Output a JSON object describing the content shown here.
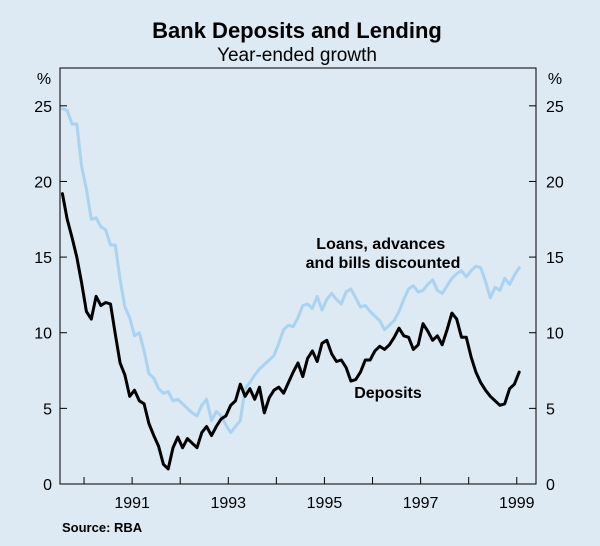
{
  "chart_data": {
    "type": "line",
    "title": "Bank Deposits and Lending",
    "subtitle": "Year-ended growth",
    "y_unit_left": "%",
    "y_unit_right": "%",
    "ylim": [
      0,
      27.5
    ],
    "y_ticks": [
      0,
      5,
      10,
      15,
      20,
      25
    ],
    "xlim": [
      1989.5,
      1999.4
    ],
    "x_ticks": [
      "1991",
      "1993",
      "1995",
      "1997",
      "1999"
    ],
    "x_tick_values": [
      1991.0,
      1993.0,
      1995.0,
      1997.0,
      1999.0
    ],
    "source": "Source: RBA",
    "grid": false,
    "series": [
      {
        "name": "Loans, advances and bills discounted",
        "label_lines": [
          "Loans, advances",
          "and bills discounted"
        ],
        "color": "#a9d3f1",
        "x": [
          1989.55,
          1989.65,
          1989.75,
          1989.85,
          1989.95,
          1990.05,
          1990.15,
          1990.25,
          1990.35,
          1990.45,
          1990.55,
          1990.65,
          1990.75,
          1990.85,
          1990.95,
          1991.05,
          1991.15,
          1991.25,
          1991.35,
          1991.45,
          1991.55,
          1991.65,
          1991.75,
          1991.85,
          1991.95,
          1992.05,
          1992.15,
          1992.25,
          1992.35,
          1992.45,
          1992.55,
          1992.65,
          1992.75,
          1992.85,
          1992.95,
          1993.05,
          1993.15,
          1993.25,
          1993.35,
          1993.45,
          1993.55,
          1993.65,
          1993.75,
          1993.85,
          1993.95,
          1994.05,
          1994.15,
          1994.25,
          1994.35,
          1994.45,
          1994.55,
          1994.65,
          1994.75,
          1994.85,
          1994.95,
          1995.05,
          1995.15,
          1995.25,
          1995.35,
          1995.45,
          1995.55,
          1995.65,
          1995.75,
          1995.85,
          1995.95,
          1996.05,
          1996.15,
          1996.25,
          1996.35,
          1996.45,
          1996.55,
          1996.65,
          1996.75,
          1996.85,
          1996.95,
          1997.05,
          1997.15,
          1997.25,
          1997.35,
          1997.45,
          1997.55,
          1997.65,
          1997.75,
          1997.85,
          1997.95,
          1998.05,
          1998.15,
          1998.25,
          1998.35,
          1998.45,
          1998.55,
          1998.65,
          1998.75,
          1998.85,
          1998.95,
          1999.05
        ],
        "values": [
          24.8,
          24.7,
          23.8,
          23.8,
          21.0,
          19.5,
          17.5,
          17.6,
          17.0,
          16.8,
          15.8,
          15.8,
          13.5,
          11.7,
          11.0,
          9.8,
          10.0,
          8.8,
          7.3,
          7.0,
          6.3,
          6.0,
          6.1,
          5.5,
          5.6,
          5.3,
          5.0,
          4.7,
          4.5,
          5.2,
          5.6,
          4.2,
          4.8,
          4.5,
          3.9,
          3.4,
          3.8,
          4.2,
          6.3,
          6.7,
          7.2,
          7.6,
          7.9,
          8.2,
          8.5,
          9.3,
          10.2,
          10.5,
          10.4,
          11.0,
          11.8,
          11.9,
          11.6,
          12.4,
          11.5,
          12.2,
          12.6,
          12.2,
          11.9,
          12.7,
          12.9,
          12.3,
          11.7,
          11.8,
          11.4,
          11.1,
          10.8,
          10.2,
          10.5,
          10.8,
          11.4,
          12.2,
          12.9,
          13.1,
          12.7,
          12.8,
          13.2,
          13.5,
          12.8,
          12.6,
          13.1,
          13.6,
          13.9,
          14.1,
          13.7,
          14.1,
          14.4,
          14.3,
          13.4,
          12.3,
          13.0,
          12.8,
          13.6,
          13.2,
          13.8,
          14.3
        ],
        "plot_x": [
          1989.55,
          1989.65,
          1989.75,
          1989.85,
          1989.95,
          1990.05,
          1990.15,
          1990.25,
          1990.35,
          1990.45,
          1990.55,
          1990.65,
          1990.75,
          1990.85,
          1990.95,
          1991.05,
          1991.15,
          1991.25,
          1991.35,
          1991.45,
          1991.55,
          1991.65,
          1991.75,
          1991.85,
          1991.95,
          1992.05,
          1992.15,
          1992.25,
          1992.35,
          1992.45,
          1992.55,
          1992.65,
          1992.75,
          1992.85,
          1992.95,
          1993.05,
          1993.15,
          1993.25,
          1993.35,
          1993.45,
          1993.55,
          1993.65,
          1993.75,
          1993.85,
          1993.95,
          1994.05,
          1994.15,
          1994.25,
          1994.35,
          1994.45,
          1994.55,
          1994.65,
          1994.75,
          1994.85,
          1994.95,
          1995.05,
          1995.15,
          1995.25,
          1995.35,
          1995.45,
          1995.55,
          1995.65,
          1995.75,
          1995.85,
          1995.95,
          1996.05,
          1996.15,
          1996.25,
          1996.35,
          1996.45,
          1996.55,
          1996.65,
          1996.75,
          1996.85,
          1996.95,
          1997.05,
          1997.15,
          1997.25,
          1997.35,
          1997.45,
          1997.55,
          1997.65,
          1997.75,
          1997.85,
          1997.95,
          1998.05,
          1998.15,
          1998.25,
          1998.35,
          1998.45,
          1998.55,
          1998.65,
          1998.75,
          1998.85,
          1998.95,
          1999.05
        ]
      },
      {
        "name": "Deposits",
        "label_lines": [
          "Deposits"
        ],
        "color": "#000000",
        "x": [
          1989.55,
          1989.65,
          1989.75,
          1989.85,
          1989.95,
          1990.05,
          1990.15,
          1990.25,
          1990.35,
          1990.45,
          1990.55,
          1990.65,
          1990.75,
          1990.85,
          1990.95,
          1991.05,
          1991.15,
          1991.25,
          1991.35,
          1991.45,
          1991.55,
          1991.65,
          1991.75,
          1991.85,
          1991.95,
          1992.05,
          1992.15,
          1992.25,
          1992.35,
          1992.45,
          1992.55,
          1992.65,
          1992.75,
          1992.85,
          1992.95,
          1993.05,
          1993.15,
          1993.25,
          1993.35,
          1993.45,
          1993.55,
          1993.65,
          1993.75,
          1993.85,
          1993.95,
          1994.05,
          1994.15,
          1994.25,
          1994.35,
          1994.45,
          1994.55,
          1994.65,
          1994.75,
          1994.85,
          1994.95,
          1995.05,
          1995.15,
          1995.25,
          1995.35,
          1995.45,
          1995.55,
          1995.65,
          1995.75,
          1995.85,
          1995.95,
          1996.05,
          1996.15,
          1996.25,
          1996.35,
          1996.45,
          1996.55,
          1996.65,
          1996.75,
          1996.85,
          1996.95,
          1997.05,
          1997.15,
          1997.25,
          1997.35,
          1997.45,
          1997.55,
          1997.65,
          1997.75,
          1997.85,
          1997.95,
          1998.05,
          1998.15,
          1998.25,
          1998.35,
          1998.45,
          1998.55,
          1998.65,
          1998.75,
          1998.85,
          1998.95,
          1999.05
        ],
        "values": [
          19.2,
          17.5,
          16.3,
          15.0,
          13.3,
          11.4,
          10.9,
          12.4,
          11.8,
          12.0,
          11.9,
          9.9,
          8.0,
          7.2,
          5.8,
          6.2,
          5.5,
          5.3,
          4.0,
          3.2,
          2.5,
          1.3,
          1.0,
          2.4,
          3.1,
          2.4,
          3.0,
          2.7,
          2.4,
          3.4,
          3.8,
          3.2,
          3.8,
          4.3,
          4.5,
          5.2,
          5.5,
          6.6,
          5.8,
          6.3,
          5.6,
          6.4,
          4.7,
          5.7,
          6.2,
          6.4,
          6.0,
          6.7,
          7.4,
          8.0,
          7.1,
          8.3,
          8.8,
          8.1,
          9.3,
          9.5,
          8.6,
          8.1,
          8.2,
          7.7,
          6.8,
          6.9,
          7.4,
          8.2,
          8.2,
          8.8,
          9.1,
          8.9,
          9.2,
          9.7,
          10.3,
          9.8,
          9.7,
          8.9,
          9.2,
          10.6,
          10.1,
          9.5,
          9.8,
          9.2,
          10.2,
          11.3,
          10.9,
          9.7,
          9.7,
          8.4,
          7.4,
          6.7,
          6.2,
          5.8,
          5.5,
          5.2,
          5.3,
          6.3,
          6.6,
          7.4
        ],
        "plot_x": [
          1989.55,
          1989.65,
          1989.75,
          1989.85,
          1989.95,
          1990.05,
          1990.15,
          1990.25,
          1990.35,
          1990.45,
          1990.55,
          1990.65,
          1990.75,
          1990.85,
          1990.95,
          1991.05,
          1991.15,
          1991.25,
          1991.35,
          1991.45,
          1991.55,
          1991.65,
          1991.75,
          1991.85,
          1991.95,
          1992.05,
          1992.15,
          1992.25,
          1992.35,
          1992.45,
          1992.55,
          1992.65,
          1992.75,
          1992.85,
          1992.95,
          1993.05,
          1993.15,
          1993.25,
          1993.35,
          1993.45,
          1993.55,
          1993.65,
          1993.75,
          1993.85,
          1993.95,
          1994.05,
          1994.15,
          1994.25,
          1994.35,
          1994.45,
          1994.55,
          1994.65,
          1994.75,
          1994.85,
          1994.95,
          1995.05,
          1995.15,
          1995.25,
          1995.35,
          1995.45,
          1995.55,
          1995.65,
          1995.75,
          1995.85,
          1995.95,
          1996.05,
          1996.15,
          1996.25,
          1996.35,
          1996.45,
          1996.55,
          1996.65,
          1996.75,
          1996.85,
          1996.95,
          1997.05,
          1997.15,
          1997.25,
          1997.35,
          1997.45,
          1997.55,
          1997.65,
          1997.75,
          1997.85,
          1997.95,
          1998.05,
          1998.15,
          1998.25,
          1998.35,
          1998.45,
          1998.55,
          1998.65,
          1998.75,
          1998.85,
          1998.95,
          1999.05
        ]
      }
    ]
  }
}
